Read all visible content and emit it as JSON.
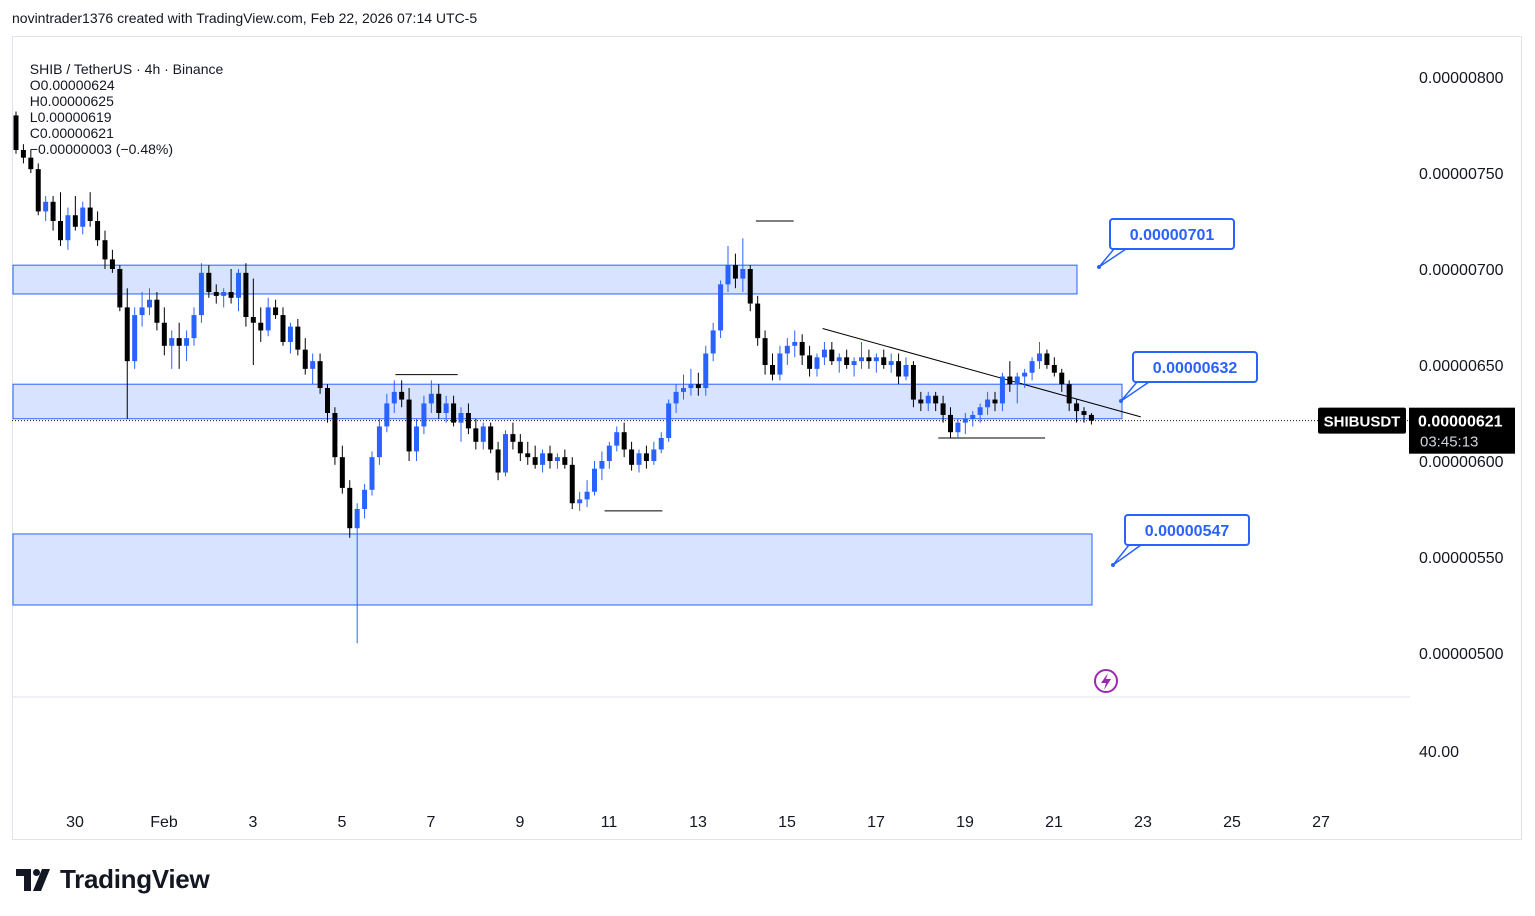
{
  "header": {
    "credit": "novintrader1376 created with TradingView.com, Feb 22, 2026 07:14 UTC-5"
  },
  "legend": {
    "symbol": "SHIB / TetherUS · 4h · Binance",
    "open": "O0.00000624",
    "high": "H0.00000625",
    "low": "L0.00000619",
    "close": "C0.00000621",
    "change": "−0.00000003 (−0.48%)"
  },
  "price_tag": {
    "ticker": "SHIBUSDT",
    "price": "0.00000621",
    "countdown": "03:45:13"
  },
  "callouts": [
    "0.00000701",
    "0.00000632",
    "0.00000547"
  ],
  "branding": {
    "logo_text": "TradingView"
  },
  "colors": {
    "up": "#2962ff",
    "down": "#000000",
    "zone_fill": "#d4e0ff",
    "zone_stroke": "#2962ff",
    "callout_border": "#2962ff",
    "callout_text": "#2962ff",
    "price_tag_bg": "#000000",
    "indicator_icon": "#9c27b0"
  },
  "chart_data": {
    "type": "candlestick",
    "symbol": "SHIBUSDT",
    "interval": "4h",
    "exchange": "Binance",
    "x_ticks": [
      "30",
      "Feb",
      "3",
      "5",
      "7",
      "9",
      "11",
      "13",
      "15",
      "17",
      "19",
      "21",
      "23",
      "25",
      "27"
    ],
    "y_ticks": [
      "0.00000800",
      "0.00000750",
      "0.00000700",
      "0.00000650",
      "0.00000600",
      "0.00000550",
      "0.00000500"
    ],
    "lower_pane_ticks": [
      "40.00"
    ],
    "ylim": [
      4.7e-06,
      8.2e-06
    ],
    "zones": [
      {
        "top": 7.02e-06,
        "bottom": 6.87e-06,
        "label": "0.00000701"
      },
      {
        "top": 6.4e-06,
        "bottom": 6.22e-06,
        "label": "0.00000632"
      },
      {
        "top": 5.62e-06,
        "bottom": 5.25e-06,
        "label": "0.00000547"
      }
    ],
    "candles_ohlc": [
      [
        7.8e-06,
        7.82e-06,
        7.6e-06,
        7.62e-06
      ],
      [
        7.62e-06,
        7.65e-06,
        7.55e-06,
        7.58e-06
      ],
      [
        7.58e-06,
        7.62e-06,
        7.5e-06,
        7.52e-06
      ],
      [
        7.52e-06,
        7.55e-06,
        7.28e-06,
        7.3e-06
      ],
      [
        7.3e-06,
        7.38e-06,
        7.25e-06,
        7.35e-06
      ],
      [
        7.35e-06,
        7.38e-06,
        7.2e-06,
        7.25e-06
      ],
      [
        7.25e-06,
        7.4e-06,
        7.12e-06,
        7.15e-06
      ],
      [
        7.15e-06,
        7.32e-06,
        7.1e-06,
        7.28e-06
      ],
      [
        7.28e-06,
        7.38e-06,
        7.2e-06,
        7.22e-06
      ],
      [
        7.22e-06,
        7.35e-06,
        7.18e-06,
        7.32e-06
      ],
      [
        7.32e-06,
        7.4e-06,
        7.22e-06,
        7.25e-06
      ],
      [
        7.25e-06,
        7.3e-06,
        7.12e-06,
        7.15e-06
      ],
      [
        7.15e-06,
        7.2e-06,
        7e-06,
        7.05e-06
      ],
      [
        7.05e-06,
        7.1e-06,
        6.98e-06,
        7e-06
      ],
      [
        7e-06,
        7.02e-06,
        6.78e-06,
        6.8e-06
      ],
      [
        6.8e-06,
        6.9e-06,
        6.22e-06,
        6.52e-06
      ],
      [
        6.52e-06,
        6.8e-06,
        6.48e-06,
        6.76e-06
      ],
      [
        6.76e-06,
        6.88e-06,
        6.7e-06,
        6.8e-06
      ],
      [
        6.8e-06,
        6.9e-06,
        6.76e-06,
        6.84e-06
      ],
      [
        6.84e-06,
        6.88e-06,
        6.68e-06,
        6.72e-06
      ],
      [
        6.72e-06,
        6.8e-06,
        6.55e-06,
        6.6e-06
      ],
      [
        6.6e-06,
        6.68e-06,
        6.48e-06,
        6.64e-06
      ],
      [
        6.64e-06,
        6.72e-06,
        6.48e-06,
        6.6e-06
      ],
      [
        6.6e-06,
        6.68e-06,
        6.52e-06,
        6.64e-06
      ],
      [
        6.64e-06,
        6.8e-06,
        6.6e-06,
        6.76e-06
      ],
      [
        6.76e-06,
        7.03e-06,
        6.72e-06,
        6.98e-06
      ],
      [
        6.98e-06,
        7.02e-06,
        6.85e-06,
        6.88e-06
      ],
      [
        6.88e-06,
        6.92e-06,
        6.82e-06,
        6.86e-06
      ],
      [
        6.86e-06,
        6.9e-06,
        6.8e-06,
        6.88e-06
      ],
      [
        6.88e-06,
        7e-06,
        6.82e-06,
        6.85e-06
      ],
      [
        6.85e-06,
        7e-06,
        6.78e-06,
        6.98e-06
      ],
      [
        6.98e-06,
        7.03e-06,
        6.7e-06,
        6.75e-06
      ],
      [
        6.75e-06,
        6.95e-06,
        6.5e-06,
        6.72e-06
      ],
      [
        6.72e-06,
        6.8e-06,
        6.62e-06,
        6.68e-06
      ],
      [
        6.68e-06,
        6.85e-06,
        6.65e-06,
        6.8e-06
      ],
      [
        6.8e-06,
        6.84e-06,
        6.74e-06,
        6.76e-06
      ],
      [
        6.76e-06,
        6.8e-06,
        6.6e-06,
        6.62e-06
      ],
      [
        6.62e-06,
        6.72e-06,
        6.56e-06,
        6.7e-06
      ],
      [
        6.7e-06,
        6.74e-06,
        6.55e-06,
        6.58e-06
      ],
      [
        6.58e-06,
        6.64e-06,
        6.45e-06,
        6.48e-06
      ],
      [
        6.48e-06,
        6.56e-06,
        6.4e-06,
        6.52e-06
      ],
      [
        6.52e-06,
        6.56e-06,
        6.35e-06,
        6.38e-06
      ],
      [
        6.38e-06,
        6.4e-06,
        6.2e-06,
        6.25e-06
      ],
      [
        6.25e-06,
        6.28e-06,
        5.98e-06,
        6.02e-06
      ],
      [
        6.02e-06,
        6.08e-06,
        5.83e-06,
        5.86e-06
      ],
      [
        5.86e-06,
        5.9e-06,
        5.6e-06,
        5.65e-06
      ],
      [
        5.65e-06,
        5.78e-06,
        5.05e-06,
        5.75e-06
      ],
      [
        5.75e-06,
        5.88e-06,
        5.7e-06,
        5.85e-06
      ],
      [
        5.85e-06,
        6.05e-06,
        5.82e-06,
        6.02e-06
      ],
      [
        6.02e-06,
        6.22e-06,
        5.98e-06,
        6.18e-06
      ],
      [
        6.18e-06,
        6.35e-06,
        6.15e-06,
        6.3e-06
      ],
      [
        6.3e-06,
        6.42e-06,
        6.25e-06,
        6.36e-06
      ],
      [
        6.36e-06,
        6.42e-06,
        6.28e-06,
        6.32e-06
      ],
      [
        6.32e-06,
        6.38e-06,
        6e-06,
        6.05e-06
      ],
      [
        6.05e-06,
        6.22e-06,
        6e-06,
        6.18e-06
      ],
      [
        6.18e-06,
        6.34e-06,
        6.14e-06,
        6.3e-06
      ],
      [
        6.3e-06,
        6.42e-06,
        6.25e-06,
        6.35e-06
      ],
      [
        6.35e-06,
        6.4e-06,
        6.22e-06,
        6.25e-06
      ],
      [
        6.25e-06,
        6.34e-06,
        6.2e-06,
        6.3e-06
      ],
      [
        6.3e-06,
        6.34e-06,
        6.18e-06,
        6.2e-06
      ],
      [
        6.2e-06,
        6.28e-06,
        6.1e-06,
        6.25e-06
      ],
      [
        6.25e-06,
        6.3e-06,
        6.14e-06,
        6.17e-06
      ],
      [
        6.17e-06,
        6.22e-06,
        6.06e-06,
        6.1e-06
      ],
      [
        6.1e-06,
        6.2e-06,
        6.06e-06,
        6.18e-06
      ],
      [
        6.18e-06,
        6.2e-06,
        6.04e-06,
        6.06e-06
      ],
      [
        6.06e-06,
        6.1e-06,
        5.9e-06,
        5.94e-06
      ],
      [
        5.94e-06,
        6.16e-06,
        5.92e-06,
        6.14e-06
      ],
      [
        6.14e-06,
        6.2e-06,
        6.06e-06,
        6.1e-06
      ],
      [
        6.1e-06,
        6.14e-06,
        6e-06,
        6.04e-06
      ],
      [
        6.04e-06,
        6.1e-06,
        5.98e-06,
        6.02e-06
      ],
      [
        6.02e-06,
        6.08e-06,
        5.96e-06,
        5.98e-06
      ],
      [
        5.98e-06,
        6.06e-06,
        5.94e-06,
        6.04e-06
      ],
      [
        6.04e-06,
        6.08e-06,
        5.96e-06,
        6e-06
      ],
      [
        6e-06,
        6.04e-06,
        5.96e-06,
        6.02e-06
      ],
      [
        6.02e-06,
        6.06e-06,
        5.96e-06,
        5.98e-06
      ],
      [
        5.98e-06,
        6.02e-06,
        5.75e-06,
        5.78e-06
      ],
      [
        5.78e-06,
        5.84e-06,
        5.74e-06,
        5.8e-06
      ],
      [
        5.8e-06,
        5.9e-06,
        5.76e-06,
        5.84e-06
      ],
      [
        5.84e-06,
        6e-06,
        5.82e-06,
        5.96e-06
      ],
      [
        5.96e-06,
        6.05e-06,
        5.9e-06,
        6e-06
      ],
      [
        6e-06,
        6.1e-06,
        5.96e-06,
        6.08e-06
      ],
      [
        6.08e-06,
        6.18e-06,
        6.05e-06,
        6.15e-06
      ],
      [
        6.15e-06,
        6.2e-06,
        6.02e-06,
        6.06e-06
      ],
      [
        6.06e-06,
        6.1e-06,
        5.95e-06,
        5.98e-06
      ],
      [
        5.98e-06,
        6.06e-06,
        5.94e-06,
        6.04e-06
      ],
      [
        6.04e-06,
        6.08e-06,
        5.96e-06,
        6e-06
      ],
      [
        6e-06,
        6.1e-06,
        5.98e-06,
        6.06e-06
      ],
      [
        6.06e-06,
        6.15e-06,
        6.04e-06,
        6.12e-06
      ],
      [
        6.12e-06,
        6.32e-06,
        6.1e-06,
        6.3e-06
      ],
      [
        6.3e-06,
        6.4e-06,
        6.25e-06,
        6.36e-06
      ],
      [
        6.36e-06,
        6.45e-06,
        6.32e-06,
        6.38e-06
      ],
      [
        6.38e-06,
        6.48e-06,
        6.34e-06,
        6.4e-06
      ],
      [
        6.4e-06,
        6.46e-06,
        6.34e-06,
        6.38e-06
      ],
      [
        6.38e-06,
        6.6e-06,
        6.34e-06,
        6.56e-06
      ],
      [
        6.56e-06,
        6.72e-06,
        6.52e-06,
        6.68e-06
      ],
      [
        6.68e-06,
        6.94e-06,
        6.64e-06,
        6.92e-06
      ],
      [
        6.92e-06,
        7.12e-06,
        6.88e-06,
        7.02e-06
      ],
      [
        7.02e-06,
        7.08e-06,
        6.9e-06,
        6.95e-06
      ],
      [
        6.95e-06,
        7.16e-06,
        6.88e-06,
        7e-06
      ],
      [
        7e-06,
        7.02e-06,
        6.78e-06,
        6.82e-06
      ],
      [
        6.82e-06,
        6.86e-06,
        6.6e-06,
        6.64e-06
      ],
      [
        6.64e-06,
        6.68e-06,
        6.45e-06,
        6.5e-06
      ],
      [
        6.5e-06,
        6.56e-06,
        6.42e-06,
        6.45e-06
      ],
      [
        6.45e-06,
        6.6e-06,
        6.42e-06,
        6.56e-06
      ],
      [
        6.56e-06,
        6.64e-06,
        6.5e-06,
        6.6e-06
      ],
      [
        6.6e-06,
        6.68e-06,
        6.54e-06,
        6.62e-06
      ],
      [
        6.62e-06,
        6.66e-06,
        6.5e-06,
        6.55e-06
      ],
      [
        6.55e-06,
        6.6e-06,
        6.44e-06,
        6.48e-06
      ],
      [
        6.48e-06,
        6.56e-06,
        6.44e-06,
        6.54e-06
      ],
      [
        6.54e-06,
        6.62e-06,
        6.5e-06,
        6.58e-06
      ],
      [
        6.58e-06,
        6.62e-06,
        6.5e-06,
        6.52e-06
      ],
      [
        6.52e-06,
        6.56e-06,
        6.46e-06,
        6.54e-06
      ],
      [
        6.54e-06,
        6.58e-06,
        6.48e-06,
        6.5e-06
      ],
      [
        6.5e-06,
        6.54e-06,
        6.44e-06,
        6.52e-06
      ],
      [
        6.52e-06,
        6.62e-06,
        6.48e-06,
        6.54e-06
      ],
      [
        6.54e-06,
        6.58e-06,
        6.48e-06,
        6.52e-06
      ],
      [
        6.52e-06,
        6.56e-06,
        6.46e-06,
        6.54e-06
      ],
      [
        6.54e-06,
        6.58e-06,
        6.48e-06,
        6.5e-06
      ],
      [
        6.5e-06,
        6.56e-06,
        6.46e-06,
        6.52e-06
      ],
      [
        6.52e-06,
        6.56e-06,
        6.4e-06,
        6.44e-06
      ],
      [
        6.44e-06,
        6.54e-06,
        6.42e-06,
        6.5e-06
      ],
      [
        6.5e-06,
        6.52e-06,
        6.28e-06,
        6.32e-06
      ],
      [
        6.32e-06,
        6.36e-06,
        6.26e-06,
        6.3e-06
      ],
      [
        6.3e-06,
        6.36e-06,
        6.26e-06,
        6.34e-06
      ],
      [
        6.34e-06,
        6.36e-06,
        6.26e-06,
        6.3e-06
      ],
      [
        6.3e-06,
        6.34e-06,
        6.2e-06,
        6.24e-06
      ],
      [
        6.24e-06,
        6.28e-06,
        6.12e-06,
        6.15e-06
      ],
      [
        6.15e-06,
        6.22e-06,
        6.12e-06,
        6.2e-06
      ],
      [
        6.2e-06,
        6.25e-06,
        6.14e-06,
        6.22e-06
      ],
      [
        6.22e-06,
        6.26e-06,
        6.18e-06,
        6.24e-06
      ],
      [
        6.24e-06,
        6.3e-06,
        6.2e-06,
        6.28e-06
      ],
      [
        6.28e-06,
        6.36e-06,
        6.24e-06,
        6.32e-06
      ],
      [
        6.32e-06,
        6.36e-06,
        6.26e-06,
        6.3e-06
      ],
      [
        6.3e-06,
        6.46e-06,
        6.26e-06,
        6.44e-06
      ],
      [
        6.44e-06,
        6.52e-06,
        6.36e-06,
        6.4e-06
      ],
      [
        6.4e-06,
        6.46e-06,
        6.3e-06,
        6.44e-06
      ],
      [
        6.44e-06,
        6.48e-06,
        6.38e-06,
        6.46e-06
      ],
      [
        6.46e-06,
        6.54e-06,
        6.42e-06,
        6.52e-06
      ],
      [
        6.52e-06,
        6.62e-06,
        6.48e-06,
        6.56e-06
      ],
      [
        6.56e-06,
        6.58e-06,
        6.48e-06,
        6.5e-06
      ],
      [
        6.5e-06,
        6.54e-06,
        6.44e-06,
        6.46e-06
      ],
      [
        6.46e-06,
        6.48e-06,
        6.36e-06,
        6.4e-06
      ],
      [
        6.4e-06,
        6.42e-06,
        6.26e-06,
        6.3e-06
      ],
      [
        6.3e-06,
        6.32e-06,
        6.2e-06,
        6.26e-06
      ],
      [
        6.26e-06,
        6.28e-06,
        6.2e-06,
        6.24e-06
      ],
      [
        6.24e-06,
        6.25e-06,
        6.19e-06,
        6.21e-06
      ]
    ],
    "horizontal_levels": [
      {
        "price": 7.25e-06,
        "date_span": [
          "Feb 14",
          "Feb 15"
        ]
      },
      {
        "price": 6.45e-06,
        "date_span": [
          "Feb 6",
          "Feb 7"
        ]
      },
      {
        "price": 5.74e-06,
        "date_span": [
          "Feb 11",
          "Feb 12"
        ]
      },
      {
        "price": 6.12e-06,
        "date_span": [
          "Feb 18",
          "Feb 20"
        ]
      }
    ],
    "trendline": {
      "from": 6.69e-06,
      "to": 6.23e-06,
      "date_span": [
        "Feb 15",
        "Feb 22"
      ]
    },
    "last_price": 6.21e-06
  }
}
